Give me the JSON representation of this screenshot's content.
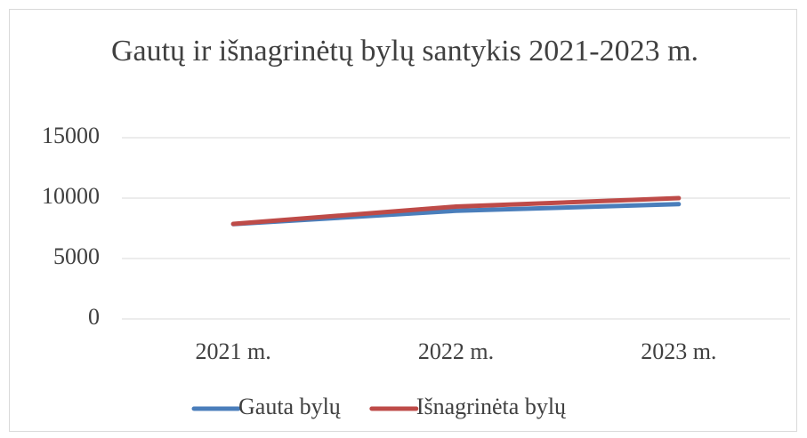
{
  "chart_data": {
    "type": "line",
    "title": "Gautų ir išnagrinėtų bylų santykis 2021-2023 m.",
    "categories": [
      "2021 m.",
      "2022 m.",
      "2023 m."
    ],
    "series": [
      {
        "name": "Gauta bylų",
        "color": "#4a7ebb",
        "values": [
          7850,
          8950,
          9500
        ]
      },
      {
        "name": "Išnagrinėta bylų",
        "color": "#be4b48",
        "values": [
          7870,
          9300,
          10000
        ]
      }
    ],
    "ylim": [
      0,
      15000
    ],
    "yticks": [
      0,
      5000,
      10000,
      15000
    ],
    "grid": true,
    "legend": "bottom"
  }
}
